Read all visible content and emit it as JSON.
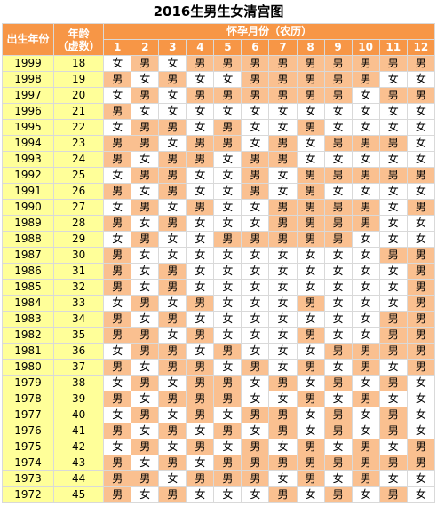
{
  "title": "2016生男生女清宫图",
  "header": {
    "year_label": "出生年份",
    "age_label_line1": "年龄",
    "age_label_line2": "（虚数）",
    "month_group_label": "怀孕月份（农历）",
    "months": [
      "1",
      "2",
      "3",
      "4",
      "5",
      "6",
      "7",
      "8",
      "9",
      "10",
      "11",
      "12"
    ]
  },
  "colors": {
    "header": "#f79646",
    "year_age_bg": "#ffff99",
    "boy_bg": "#fac090",
    "girl_bg": "#ffffff"
  },
  "rows": [
    {
      "year": "1999",
      "age": "18",
      "cells": [
        "女",
        "男",
        "女",
        "男",
        "男",
        "男",
        "男",
        "男",
        "男",
        "男",
        "男",
        "男"
      ]
    },
    {
      "year": "1998",
      "age": "19",
      "cells": [
        "男",
        "女",
        "男",
        "女",
        "女",
        "男",
        "男",
        "男",
        "男",
        "男",
        "女",
        "女"
      ]
    },
    {
      "year": "1997",
      "age": "20",
      "cells": [
        "女",
        "男",
        "女",
        "男",
        "男",
        "男",
        "男",
        "男",
        "男",
        "女",
        "男",
        "男"
      ]
    },
    {
      "year": "1996",
      "age": "21",
      "cells": [
        "男",
        "女",
        "女",
        "女",
        "女",
        "女",
        "女",
        "女",
        "女",
        "女",
        "女",
        "女"
      ]
    },
    {
      "year": "1995",
      "age": "22",
      "cells": [
        "女",
        "男",
        "男",
        "女",
        "男",
        "女",
        "女",
        "男",
        "女",
        "女",
        "女",
        "女"
      ]
    },
    {
      "year": "1994",
      "age": "23",
      "cells": [
        "男",
        "男",
        "女",
        "男",
        "男",
        "女",
        "男",
        "女",
        "男",
        "男",
        "男",
        "女"
      ]
    },
    {
      "year": "1993",
      "age": "24",
      "cells": [
        "男",
        "女",
        "男",
        "男",
        "女",
        "男",
        "男",
        "女",
        "女",
        "女",
        "女",
        "女"
      ]
    },
    {
      "year": "1992",
      "age": "25",
      "cells": [
        "女",
        "男",
        "男",
        "女",
        "女",
        "男",
        "女",
        "男",
        "男",
        "男",
        "男",
        "男"
      ]
    },
    {
      "year": "1991",
      "age": "26",
      "cells": [
        "男",
        "女",
        "男",
        "女",
        "女",
        "男",
        "女",
        "男",
        "女",
        "女",
        "女",
        "女"
      ]
    },
    {
      "year": "1990",
      "age": "27",
      "cells": [
        "女",
        "男",
        "女",
        "男",
        "女",
        "女",
        "男",
        "男",
        "男",
        "男",
        "女",
        "男"
      ]
    },
    {
      "year": "1989",
      "age": "28",
      "cells": [
        "男",
        "女",
        "男",
        "女",
        "女",
        "女",
        "男",
        "男",
        "男",
        "男",
        "女",
        "女"
      ]
    },
    {
      "year": "1988",
      "age": "29",
      "cells": [
        "女",
        "男",
        "女",
        "女",
        "男",
        "男",
        "男",
        "男",
        "男",
        "女",
        "女",
        "女"
      ]
    },
    {
      "year": "1987",
      "age": "30",
      "cells": [
        "男",
        "女",
        "女",
        "女",
        "女",
        "女",
        "女",
        "女",
        "女",
        "女",
        "男",
        "男"
      ]
    },
    {
      "year": "1986",
      "age": "31",
      "cells": [
        "男",
        "女",
        "男",
        "女",
        "女",
        "女",
        "女",
        "女",
        "女",
        "女",
        "女",
        "男"
      ]
    },
    {
      "year": "1985",
      "age": "32",
      "cells": [
        "男",
        "女",
        "男",
        "女",
        "女",
        "女",
        "女",
        "女",
        "女",
        "女",
        "女",
        "男"
      ]
    },
    {
      "year": "1984",
      "age": "33",
      "cells": [
        "女",
        "男",
        "女",
        "男",
        "女",
        "女",
        "女",
        "男",
        "女",
        "女",
        "女",
        "男"
      ]
    },
    {
      "year": "1983",
      "age": "34",
      "cells": [
        "男",
        "女",
        "男",
        "女",
        "女",
        "女",
        "女",
        "女",
        "女",
        "女",
        "男",
        "男"
      ]
    },
    {
      "year": "1982",
      "age": "35",
      "cells": [
        "男",
        "男",
        "女",
        "男",
        "女",
        "女",
        "女",
        "男",
        "女",
        "女",
        "男",
        "男"
      ]
    },
    {
      "year": "1981",
      "age": "36",
      "cells": [
        "女",
        "男",
        "男",
        "女",
        "男",
        "女",
        "女",
        "女",
        "男",
        "男",
        "男",
        "男"
      ]
    },
    {
      "year": "1980",
      "age": "37",
      "cells": [
        "男",
        "女",
        "男",
        "男",
        "女",
        "男",
        "女",
        "男",
        "女",
        "男",
        "女",
        "男"
      ]
    },
    {
      "year": "1979",
      "age": "38",
      "cells": [
        "女",
        "男",
        "女",
        "男",
        "男",
        "女",
        "男",
        "女",
        "男",
        "女",
        "男",
        "女"
      ]
    },
    {
      "year": "1978",
      "age": "39",
      "cells": [
        "男",
        "女",
        "男",
        "男",
        "男",
        "女",
        "女",
        "男",
        "女",
        "男",
        "女",
        "女"
      ]
    },
    {
      "year": "1977",
      "age": "40",
      "cells": [
        "女",
        "男",
        "女",
        "男",
        "女",
        "男",
        "男",
        "女",
        "男",
        "女",
        "男",
        "女"
      ]
    },
    {
      "year": "1976",
      "age": "41",
      "cells": [
        "男",
        "女",
        "男",
        "女",
        "男",
        "女",
        "男",
        "女",
        "男",
        "女",
        "男",
        "女"
      ]
    },
    {
      "year": "1975",
      "age": "42",
      "cells": [
        "女",
        "男",
        "女",
        "男",
        "女",
        "男",
        "女",
        "男",
        "女",
        "男",
        "女",
        "男"
      ]
    },
    {
      "year": "1974",
      "age": "43",
      "cells": [
        "男",
        "女",
        "男",
        "女",
        "男",
        "男",
        "男",
        "男",
        "男",
        "男",
        "男",
        "男"
      ]
    },
    {
      "year": "1973",
      "age": "44",
      "cells": [
        "男",
        "男",
        "女",
        "男",
        "男",
        "男",
        "女",
        "男",
        "女",
        "男",
        "女",
        "女"
      ]
    },
    {
      "year": "1972",
      "age": "45",
      "cells": [
        "男",
        "女",
        "男",
        "女",
        "女",
        "女",
        "男",
        "女",
        "男",
        "女",
        "男",
        "女"
      ]
    }
  ]
}
